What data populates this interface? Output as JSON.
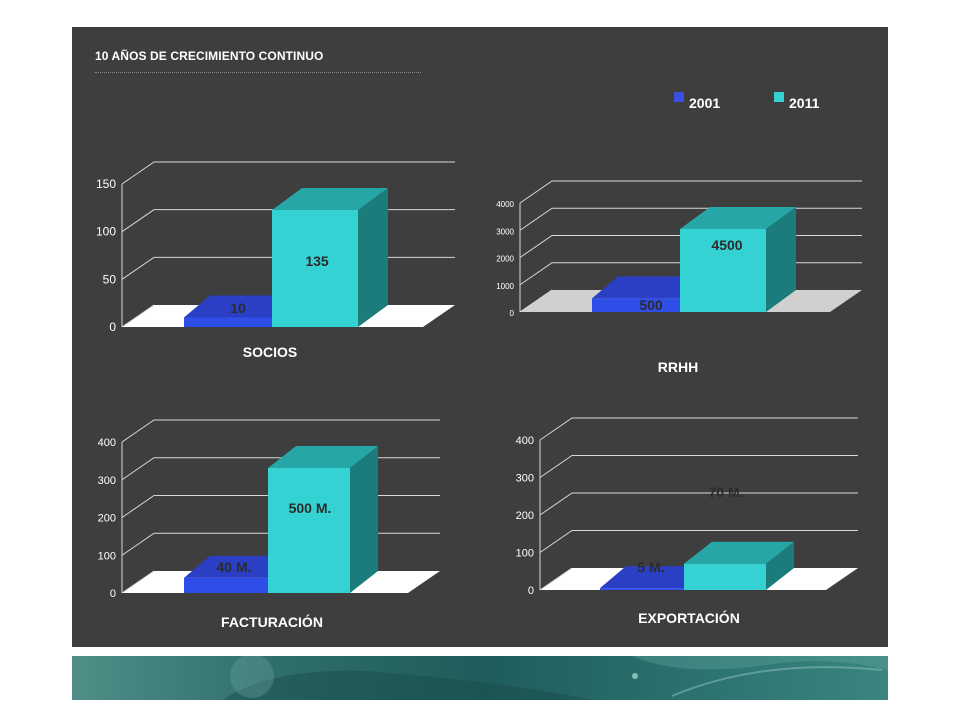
{
  "slide": {
    "title": "10 AÑOS DE CRECIMIENTO CONTINUO",
    "background": "#3e3e3e"
  },
  "legend": {
    "items": [
      {
        "label": "2001",
        "color": "#3a50e0"
      },
      {
        "label": "2011",
        "color": "#34d2d2"
      }
    ]
  },
  "colors": {
    "bar_2001_front": "#2f4ee8",
    "bar_2001_top": "#2a3fc4",
    "bar_2011_front": "#34d2d2",
    "bar_2011_top": "#26a6a6",
    "bar_2011_side": "#1c7c7c"
  },
  "chart_data": [
    {
      "type": "bar",
      "title": "SOCIOS",
      "categories": [
        "2001",
        "2011"
      ],
      "values": [
        10,
        135
      ],
      "data_labels": [
        "10",
        "135"
      ],
      "yticks": [
        0,
        50,
        100,
        150
      ],
      "ytick_labels": [
        "0",
        "50",
        "100",
        "150"
      ],
      "ylim": [
        0,
        150
      ],
      "grid": true
    },
    {
      "type": "bar",
      "title": "RRHH",
      "categories": [
        "2001",
        "2011"
      ],
      "values": [
        500,
        4500
      ],
      "data_labels": [
        "500",
        "4500"
      ],
      "yticks": [
        0,
        1000,
        2000,
        3000,
        4000
      ],
      "ytick_labels": [
        "0",
        "1000",
        "2000",
        "3000",
        "4000"
      ],
      "ylim": [
        0,
        4000
      ],
      "grid": true
    },
    {
      "type": "bar",
      "title": "FACTURACIÓN",
      "categories": [
        "2001",
        "2011"
      ],
      "values": [
        40,
        500
      ],
      "data_labels": [
        "40 M.",
        "500 M."
      ],
      "yticks": [
        0,
        100,
        200,
        300,
        400
      ],
      "ytick_labels": [
        "0",
        "100",
        "200",
        "300",
        "400"
      ],
      "ylim": [
        0,
        400
      ],
      "grid": true
    },
    {
      "type": "bar",
      "title": "EXPORTACIÓN",
      "categories": [
        "2001",
        "2011"
      ],
      "values": [
        5,
        70
      ],
      "data_labels": [
        "5 M.",
        "70 M."
      ],
      "yticks": [
        0,
        100,
        200,
        300,
        400
      ],
      "ytick_labels": [
        "0",
        "100",
        "200",
        "300",
        "400"
      ],
      "ylim": [
        0,
        400
      ],
      "grid": true
    }
  ]
}
